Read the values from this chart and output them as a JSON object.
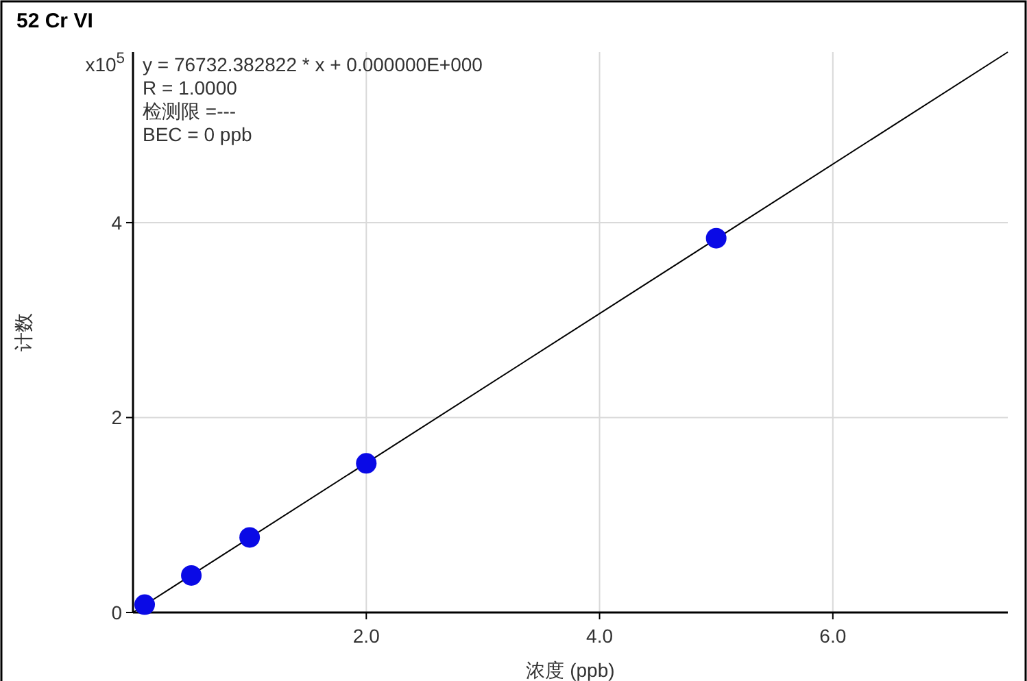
{
  "chart_data": {
    "type": "scatter",
    "title": "52 Cr VI",
    "xlabel": "浓度 (ppb)",
    "ylabel": "计数",
    "annotations": [
      "x10$^{5}$",
      "y = 76732.382822 * x  + 0.000000E+000",
      "R =  1.0000",
      "检测限 =---",
      "BEC = 0 ppb"
    ],
    "xlim": [
      0,
      7.5
    ],
    "ylim": [
      0,
      5.75
    ],
    "xticks": [
      {
        "value": 2,
        "label": "2.0"
      },
      {
        "value": 4,
        "label": "4.0"
      },
      {
        "value": 6,
        "label": "6.0"
      }
    ],
    "yticks": [
      0,
      2,
      4
    ],
    "grid": true,
    "series": [
      {
        "type": "line",
        "color": "#000000",
        "x": [
          0,
          7.5
        ],
        "values": [
          0,
          5.75
        ],
        "marker": "none"
      },
      {
        "color": "#0a0ae6",
        "x": [
          0.1,
          0.5,
          1,
          2,
          5
        ],
        "values": [
          0.08,
          0.38,
          0.77,
          1.53,
          3.84
        ],
        "marker": "circle"
      }
    ]
  }
}
